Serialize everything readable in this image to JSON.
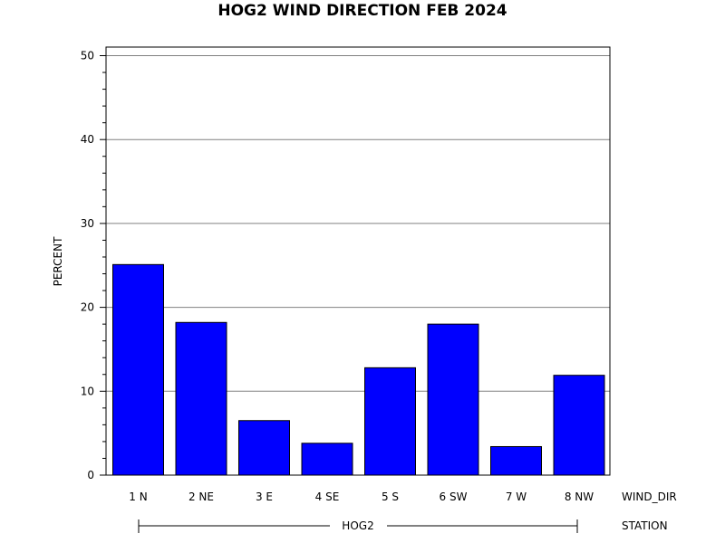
{
  "chart_data": {
    "type": "bar",
    "title": "HOG2 WIND DIRECTION FEB 2024",
    "ylabel": "PERCENT",
    "xlabel": "WIND_DIR",
    "group_label": "STATION",
    "group_name": "HOG2",
    "categories": [
      "1 N",
      "2 NE",
      "3 E",
      "4 SE",
      "5 S",
      "6 SW",
      "7 W",
      "8 NW"
    ],
    "values": [
      25.1,
      18.2,
      6.5,
      3.8,
      12.8,
      18.0,
      3.4,
      11.9
    ],
    "ylim": [
      0,
      50
    ],
    "yticks": [
      "0",
      "10",
      "20",
      "30",
      "40",
      "50"
    ],
    "grid": true,
    "colors": {
      "bar": "#0000ff",
      "grid": "#808080"
    }
  }
}
